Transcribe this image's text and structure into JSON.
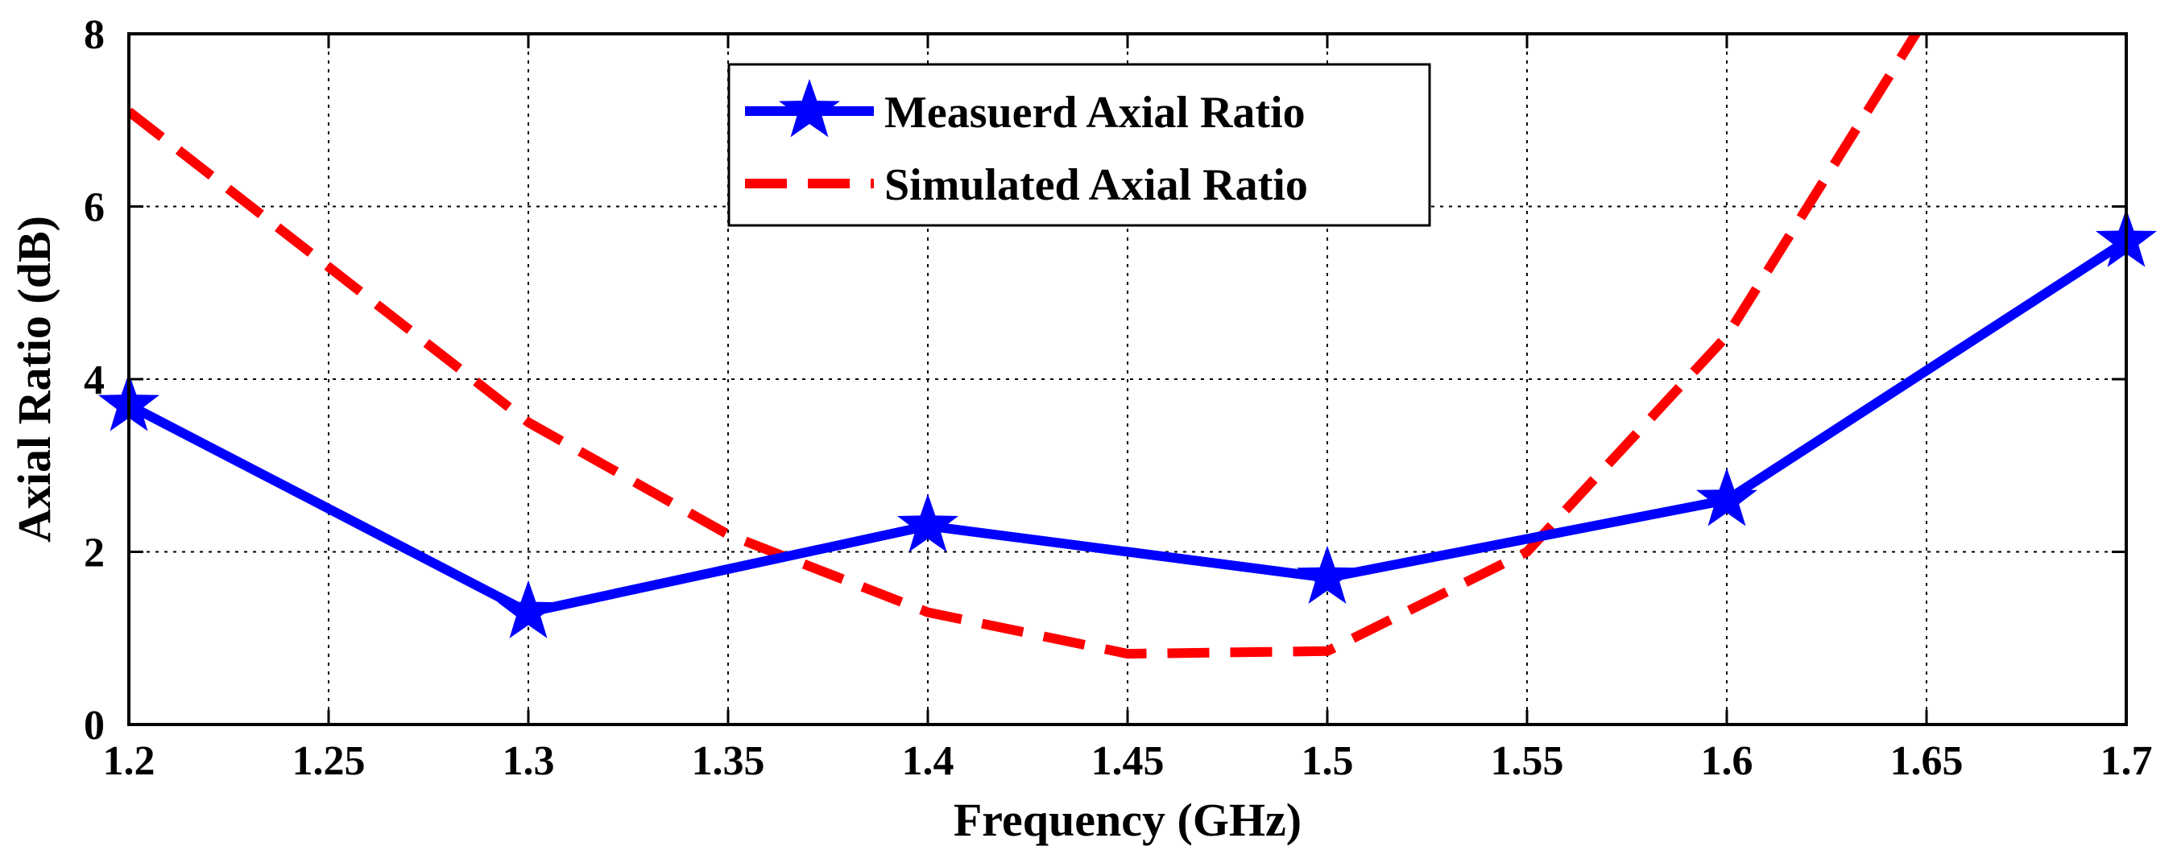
{
  "chart_data": {
    "type": "line",
    "title": "",
    "xlabel": "Frequency (GHz)",
    "ylabel": "Axial Ratio (dB)",
    "xlim": [
      1.2,
      1.7
    ],
    "ylim": [
      0,
      8
    ],
    "xticks": [
      1.2,
      1.25,
      1.3,
      1.35,
      1.4,
      1.45,
      1.5,
      1.55,
      1.6,
      1.65,
      1.7
    ],
    "xtick_labels": [
      "1.2",
      "1.25",
      "1.3",
      "1.35",
      "1.4",
      "1.45",
      "1.5",
      "1.55",
      "1.6",
      "1.65",
      "1.7"
    ],
    "yticks": [
      0,
      2,
      4,
      6,
      8
    ],
    "ytick_labels": [
      "0",
      "2",
      "4",
      "6",
      "8"
    ],
    "grid": true,
    "legend_position": "top-center",
    "series": [
      {
        "name": "Measuerd Axial Ratio",
        "color": "#0000ff",
        "style": "solid",
        "marker": "star",
        "x": [
          1.2,
          1.3,
          1.4,
          1.5,
          1.6,
          1.7
        ],
        "y": [
          3.7,
          1.3,
          2.3,
          1.7,
          2.6,
          5.6
        ]
      },
      {
        "name": "Simulated Axial Ratio",
        "color": "#ff0000",
        "style": "dashed",
        "marker": "none",
        "x": [
          1.2,
          1.3,
          1.35,
          1.4,
          1.45,
          1.5,
          1.55,
          1.6,
          1.65
        ],
        "y": [
          7.1,
          3.5,
          2.2,
          1.3,
          0.82,
          0.85,
          2.0,
          4.5,
          8.2
        ]
      }
    ]
  }
}
